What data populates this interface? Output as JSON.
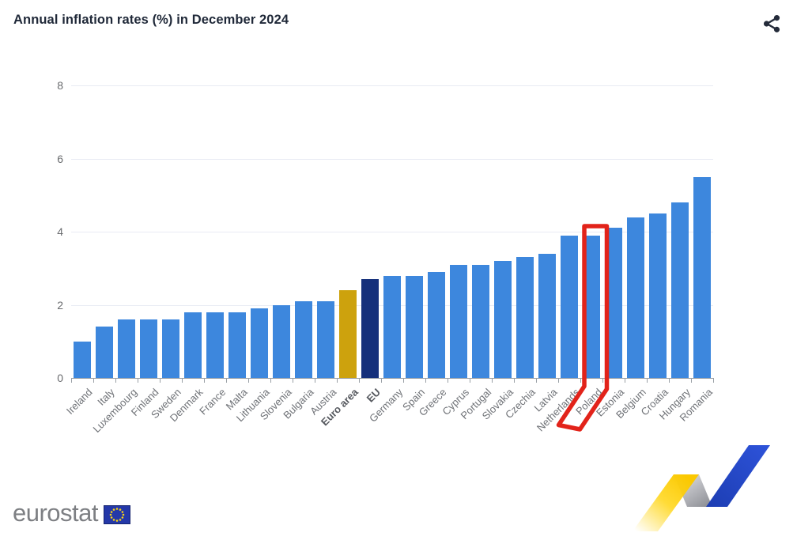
{
  "header": {
    "title": "Annual inflation rates (%) in December 2024"
  },
  "chart_data": {
    "type": "bar",
    "title": "Annual inflation rates (%) in December 2024",
    "xlabel": "",
    "ylabel": "",
    "ylim": [
      0,
      8
    ],
    "yticks": [
      0,
      2,
      4,
      6,
      8
    ],
    "grid": true,
    "legend": "none",
    "categories": [
      "Ireland",
      "Italy",
      "Luxembourg",
      "Finland",
      "Sweden",
      "Denmark",
      "France",
      "Malta",
      "Lithuania",
      "Slovenia",
      "Bulgaria",
      "Austria",
      "Euro area",
      "EU",
      "Germany",
      "Spain",
      "Greece",
      "Cyprus",
      "Portugal",
      "Slovakia",
      "Czechia",
      "Latvia",
      "Netherlands",
      "Poland",
      "Estonia",
      "Belgium",
      "Croatia",
      "Hungary",
      "Romania"
    ],
    "values": [
      1.0,
      1.4,
      1.6,
      1.6,
      1.6,
      1.8,
      1.8,
      1.8,
      1.9,
      2.0,
      2.1,
      2.1,
      2.4,
      2.7,
      2.8,
      2.8,
      2.9,
      3.1,
      3.1,
      3.2,
      3.3,
      3.4,
      3.9,
      3.9,
      4.1,
      4.4,
      4.5,
      4.8,
      5.5
    ],
    "default_bar_color": "#3d87dd",
    "special_bar_colors": {
      "Euro area": "#cda20d",
      "EU": "#15307b"
    },
    "bold_categories": [
      "Euro area",
      "EU"
    ],
    "highlighted_category": "Poland"
  },
  "annotation": {
    "target": "Poland",
    "color": "#e2231a",
    "shape": "hand-drawn red rectangle outline around Poland bar and label"
  },
  "footer": {
    "logo_text": "eurostat"
  },
  "colors": {
    "bar_blue": "#3d87dd",
    "euro_area_gold": "#cda20d",
    "eu_navy": "#15307b",
    "highlight_red": "#e2231a",
    "title_text": "#1f2838",
    "axis_text": "#6f7277",
    "gridline": "#e8ebf3"
  }
}
